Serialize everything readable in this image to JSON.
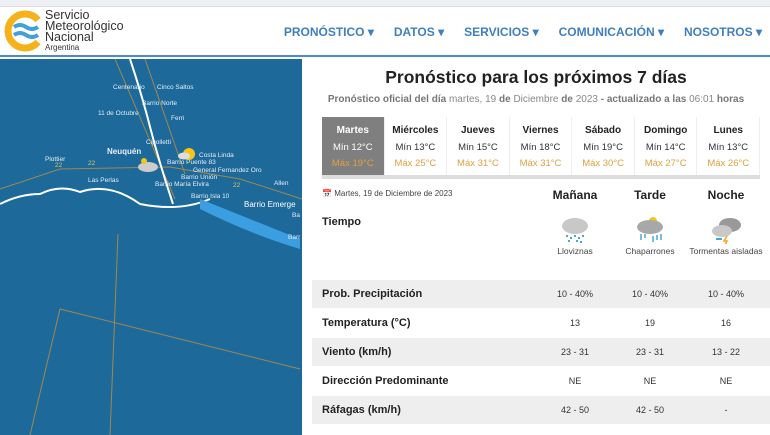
{
  "header": {
    "brand_lines": [
      "Servicio",
      "Meteorológico",
      "Nacional"
    ],
    "brand_sub": "Argentina",
    "nav": [
      "PRONÓSTICO ▾",
      "DATOS ▾",
      "SERVICIOS ▾",
      "COMUNICACIÓN ▾",
      "NOSOTROS ▾"
    ]
  },
  "map": {
    "labels": [
      "Centenario",
      "Cinco Saltos",
      "Barrio Norte",
      "11 de Octubre",
      "Ferri",
      "Cipolletti",
      "Neuquén",
      "Costa Linda",
      "Plottier",
      "Barrio Puente 83",
      "General Fernandez Oro",
      "Barrio Unión",
      "Allen",
      "Las Perlas",
      "Barrio María Elvira",
      "Barrio Isla 10",
      "Barrio Emerge",
      "Ba",
      "Barr",
      "22",
      "22",
      "22"
    ]
  },
  "forecast": {
    "title": "Pronóstico para los próximos 7 días",
    "sub_a": "Pronóstico oficial del día",
    "sub_date": "martes, 19",
    "sub_de": "de",
    "sub_month": "Diciembre",
    "sub_de2": "de",
    "sub_year": "2023",
    "sub_upd": "- actualizado a las",
    "sub_time": "06:01",
    "sub_horas": "horas",
    "days": [
      {
        "name": "Martes",
        "min": "Mín 12°C",
        "max": "Máx 19°C",
        "active": true
      },
      {
        "name": "Miércoles",
        "min": "Mín 13°C",
        "max": "Máx 25°C"
      },
      {
        "name": "Jueves",
        "min": "Mín 15°C",
        "max": "Máx 31°C"
      },
      {
        "name": "Viernes",
        "min": "Mín 18°C",
        "max": "Máx 31°C"
      },
      {
        "name": "Sábado",
        "min": "Mín 19°C",
        "max": "Máx 30°C"
      },
      {
        "name": "Domingo",
        "min": "Mín 14°C",
        "max": "Máx 27°C"
      },
      {
        "name": "Lunes",
        "min": "Mín 13°C",
        "max": "Máx 26°C"
      }
    ],
    "date": "Martes, 19 de Diciembre de 2023",
    "periods": [
      "Mañana",
      "Tarde",
      "Noche"
    ],
    "tiempo_label": "Tiempo",
    "weather": [
      {
        "text": "Lloviznas",
        "icon": "drizzle-icon"
      },
      {
        "text": "Chaparrones",
        "icon": "showers-sun-icon"
      },
      {
        "text": "Tormentas aisladas",
        "icon": "thunderstorm-icon"
      }
    ],
    "rows": [
      {
        "label": "Prob. Precipitación",
        "values": [
          "10 - 40%",
          "10 - 40%",
          "10 - 40%"
        ]
      },
      {
        "label": "Temperatura (°C)",
        "values": [
          "13",
          "19",
          "16"
        ]
      },
      {
        "label": "Viento (km/h)",
        "values": [
          "23 - 31",
          "23 - 31",
          "13 - 22"
        ]
      },
      {
        "label": "Dirección Predominante",
        "values": [
          "NE",
          "NE",
          "NE"
        ]
      },
      {
        "label": "Ráfagas (km/h)",
        "values": [
          "42 - 50",
          "42 - 50",
          "-"
        ]
      }
    ]
  },
  "colors": {
    "accent": "#3f7fc0",
    "map": "#1c699a",
    "max_temp": "#e0a040",
    "active_day": "#7f7f7f"
  }
}
